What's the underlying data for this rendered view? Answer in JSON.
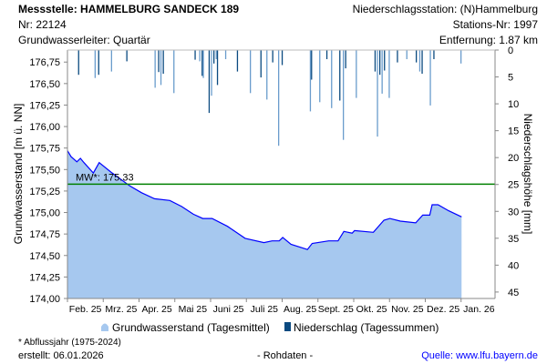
{
  "header": {
    "station": "Messstelle: HAMMELBURG SANDECK 189",
    "nr": "Nr: 22124",
    "aquifer": "Grundwasserleiter: Quartär",
    "precip_station": "Niederschlagsstation: (N)Hammelburg",
    "precip_station_nr": "Stations-Nr: 1997",
    "distance": "Entfernung: 1.87 km"
  },
  "footer": {
    "note": "* Abflussjahr (1975-2024)",
    "created": "erstellt:  06.01.2026",
    "raw": "- Rohdaten -",
    "source": "Quelle: www.lfu.bayern.de"
  },
  "colors": {
    "area": "#a6c8ef",
    "line": "#0000ff",
    "mw": "#008000",
    "precip_dark": "#0a4a80",
    "precip_light": "#6a9ccc"
  },
  "chart_data": {
    "type": "area",
    "xlabel": "",
    "ylabel": "Grundwasserstand [m ü. NN]",
    "y2label": "Niederschlagshöhe [mm]",
    "ylim": [
      174.0,
      176.89
    ],
    "y2lim": [
      0,
      46.2
    ],
    "xlim": [
      "2025-02-01",
      "2026-02-01"
    ],
    "yticks": [
      "174,00",
      "174,25",
      "174,50",
      "174,75",
      "175,00",
      "175,25",
      "175,50",
      "175,75",
      "176,00",
      "176,25",
      "176,50",
      "176,75"
    ],
    "y2ticks": [
      "0",
      "5",
      "10",
      "15",
      "20",
      "25",
      "30",
      "35",
      "40",
      "45"
    ],
    "xticks": [
      "Feb. 25",
      "Mrz. 25",
      "Apr. 25",
      "Mai 25",
      "Juni 25",
      "Juli 25",
      "Aug. 25",
      "Sept. 25",
      "Okt. 25",
      "Nov. 25",
      "Dez. 25",
      "Jan. 26"
    ],
    "mean_line": {
      "label": "MW*: 175.33",
      "value": 175.33
    },
    "legend": [
      "Grundwasserstand (Tagesmittel)",
      "Niederschlag (Tagessummen)"
    ],
    "legend_position": "bottom",
    "groundwater": {
      "name": "Grundwasserstand (Tagesmittel)",
      "dates": [
        "2025-02-01",
        "2025-02-04",
        "2025-02-09",
        "2025-02-12",
        "2025-02-15",
        "2025-02-23",
        "2025-02-28",
        "2025-03-10",
        "2025-03-26",
        "2025-04-05",
        "2025-04-16",
        "2025-04-29",
        "2025-05-09",
        "2025-05-19",
        "2025-05-27",
        "2025-06-04",
        "2025-06-17",
        "2025-07-02",
        "2025-07-18",
        "2025-07-25",
        "2025-07-31",
        "2025-08-03",
        "2025-08-10",
        "2025-08-24",
        "2025-08-28",
        "2025-09-11",
        "2025-09-19",
        "2025-09-24",
        "2025-10-01",
        "2025-10-03",
        "2025-10-19",
        "2025-10-28",
        "2025-11-02",
        "2025-11-11",
        "2025-11-24",
        "2025-11-30",
        "2025-12-06",
        "2025-12-08",
        "2025-12-13",
        "2025-12-22",
        "2026-01-02"
      ],
      "values": [
        175.72,
        175.65,
        175.59,
        175.63,
        175.58,
        175.46,
        175.58,
        175.47,
        175.31,
        175.23,
        175.16,
        175.14,
        175.07,
        174.98,
        174.93,
        174.93,
        174.84,
        174.7,
        174.65,
        174.67,
        174.67,
        174.71,
        174.63,
        174.57,
        174.64,
        174.67,
        174.67,
        174.78,
        174.76,
        174.79,
        174.77,
        174.91,
        174.93,
        174.9,
        174.88,
        174.97,
        174.97,
        175.09,
        175.09,
        175.02,
        174.95
      ]
    },
    "precipitation": {
      "name": "Niederschlag (Tagessummen)",
      "dates": [
        "2025-02-10",
        "2025-02-24",
        "2025-02-27",
        "2025-03-10",
        "2025-03-23",
        "2025-04-16",
        "2025-04-19",
        "2025-04-21",
        "2025-04-23",
        "2025-05-02",
        "2025-05-20",
        "2025-05-24",
        "2025-05-26",
        "2025-05-27",
        "2025-06-01",
        "2025-06-03",
        "2025-06-05",
        "2025-06-07",
        "2025-06-08",
        "2025-06-15",
        "2025-06-25",
        "2025-07-06",
        "2025-07-15",
        "2025-07-20",
        "2025-07-25",
        "2025-07-30",
        "2025-08-02",
        "2025-08-26",
        "2025-08-27",
        "2025-09-03",
        "2025-09-09",
        "2025-09-13",
        "2025-09-20",
        "2025-09-23",
        "2025-09-25",
        "2025-10-04",
        "2025-10-20",
        "2025-10-22",
        "2025-10-24",
        "2025-10-26",
        "2025-10-28",
        "2025-11-01",
        "2025-11-08",
        "2025-11-16",
        "2025-11-24",
        "2025-11-27",
        "2025-11-29",
        "2025-12-06",
        "2025-12-09",
        "2026-01-01"
      ],
      "values": [
        4.6,
        5.2,
        4.6,
        4.0,
        2.1,
        7.0,
        4.1,
        6.5,
        4.4,
        8.0,
        1.8,
        2.1,
        4.8,
        5.2,
        11.7,
        8.5,
        2.5,
        1.7,
        6.5,
        1.7,
        4.0,
        8.0,
        5.1,
        9.2,
        2.3,
        17.8,
        2.8,
        11.4,
        5.5,
        9.7,
        1.7,
        10.8,
        9.4,
        16.7,
        3.4,
        8.9,
        4.0,
        16.1,
        4.6,
        8.1,
        3.8,
        8.9,
        2.3,
        1.7,
        2.3,
        4.0,
        4.4,
        10.3,
        1.7,
        2.5
      ]
    }
  }
}
